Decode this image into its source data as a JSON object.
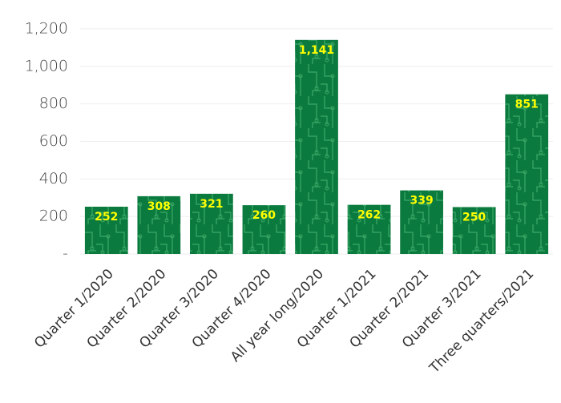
{
  "chart_data": {
    "type": "bar",
    "categories": [
      "Quarter 1/2020",
      "Quarter 2/2020",
      "Quarter 3/2020",
      "Quarter 4/2020",
      "All year long/2020",
      "Quarter 1/2021",
      "Quarter 2/2021",
      "Quarter 3/2021",
      "Three quarters/2021"
    ],
    "values": [
      252,
      308,
      321,
      260,
      1141,
      262,
      339,
      250,
      851
    ],
    "value_labels": [
      "252",
      "308",
      "321",
      "260",
      "1,141",
      "262",
      "339",
      "250",
      "851"
    ],
    "color": "#0b7a3e",
    "ylim": [
      0,
      1200
    ],
    "yticks": [
      {
        "value": 0,
        "label": "-"
      },
      200,
      400,
      600,
      800,
      {
        "value": 1000,
        "label": "1,000"
      },
      {
        "value": 1200,
        "label": "1,200"
      }
    ],
    "grid": true
  }
}
